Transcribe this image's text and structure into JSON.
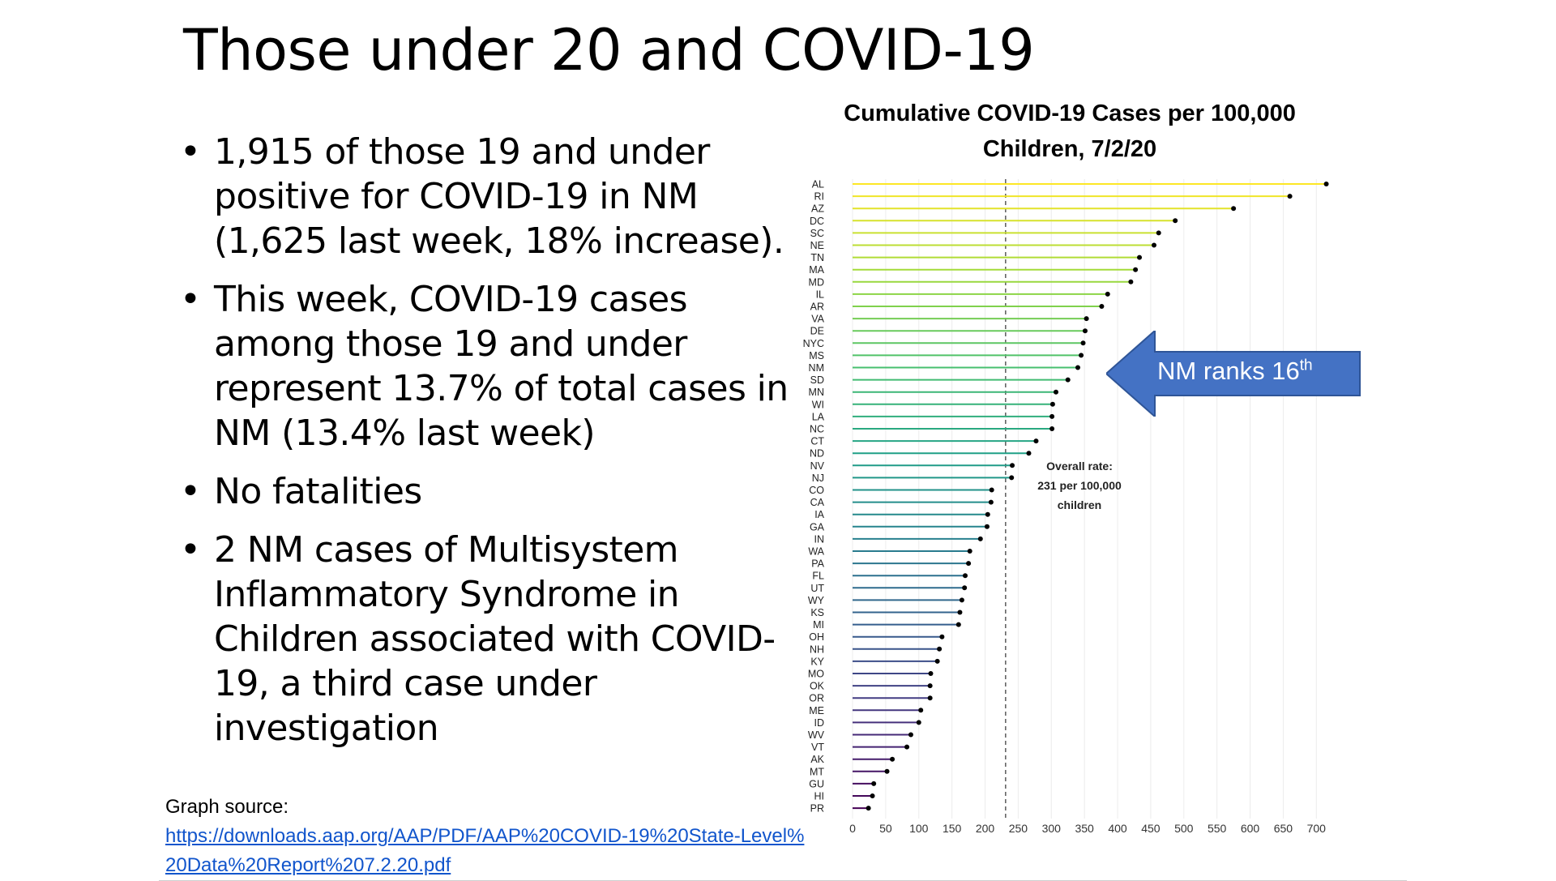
{
  "slide": {
    "title": "Those under 20 and COVID-19",
    "bullets": [
      "1,915 of those 19 and under positive for COVID-19 in NM (1,625 last week, 18% increase).",
      "This week, COVID-19 cases among those 19 and under represent 13.7% of total cases in NM (13.4% last week)",
      "No fatalities",
      "2 NM cases of Multisystem Inflammatory Syndrome in Children associated with COVID-19, a third case under investigation"
    ],
    "bullet_char": "•",
    "source_caption": "Graph source:",
    "source_link": "https://downloads.aap.org/AAP/PDF/AAP%20COVID-19%20State-Level%20Data%20Report%207.2.20.pdf"
  },
  "callout": {
    "text": "NM ranks 16",
    "superscript": "th",
    "color": "#4472c4",
    "border_color": "#2f5597"
  },
  "chart_data": {
    "type": "lollipop",
    "title": "Cumulative COVID-19 Cases per 100,000 Children, 7/2/20",
    "categories": [
      "AL",
      "RI",
      "AZ",
      "DC",
      "SC",
      "NE",
      "TN",
      "MA",
      "MD",
      "IL",
      "AR",
      "VA",
      "DE",
      "NYC",
      "MS",
      "NM",
      "SD",
      "MN",
      "WI",
      "LA",
      "NC",
      "CT",
      "ND",
      "NV",
      "NJ",
      "CO",
      "CA",
      "IA",
      "GA",
      "IN",
      "WA",
      "PA",
      "FL",
      "UT",
      "WY",
      "KS",
      "MI",
      "OH",
      "NH",
      "KY",
      "MO",
      "OK",
      "OR",
      "ME",
      "ID",
      "WV",
      "VT",
      "AK",
      "MT",
      "GU",
      "HI",
      "PR"
    ],
    "values": [
      715,
      660,
      575,
      487,
      462,
      455,
      433,
      427,
      420,
      385,
      376,
      353,
      351,
      348,
      345,
      340,
      325,
      307,
      302,
      301,
      301,
      277,
      266,
      241,
      240,
      210,
      209,
      204,
      203,
      193,
      177,
      175,
      170,
      169,
      165,
      162,
      160,
      135,
      131,
      128,
      118,
      117,
      117,
      103,
      100,
      88,
      82,
      60,
      52,
      32,
      30,
      24
    ],
    "xlim": [
      0,
      740
    ],
    "xticks": [
      0,
      50,
      100,
      150,
      200,
      250,
      300,
      350,
      400,
      450,
      500,
      550,
      600,
      650,
      700
    ],
    "reference_line": {
      "value": 231,
      "label": [
        "Overall rate:",
        "231 per 100,000",
        "children"
      ]
    },
    "grid": true,
    "color_scale": [
      "#fde725",
      "#a0da39",
      "#4ac16d",
      "#1fa187",
      "#277f8e",
      "#365c8d",
      "#46327e",
      "#440154"
    ]
  }
}
